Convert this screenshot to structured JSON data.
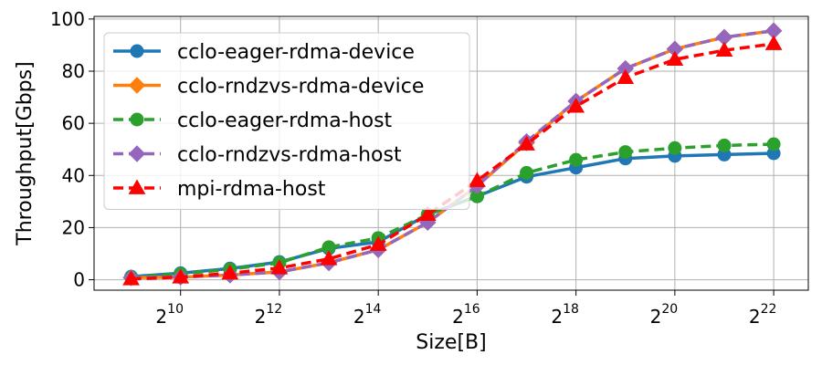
{
  "chart_data": {
    "type": "line",
    "title": "",
    "xlabel": "Size[B]",
    "ylabel": "Throughput[Gbps]",
    "x_scale": "log2",
    "x_exponents": [
      9,
      10,
      11,
      12,
      13,
      14,
      15,
      16,
      17,
      18,
      19,
      20,
      21,
      22
    ],
    "xticks": [
      {
        "base": "2",
        "exp": "10",
        "value": 10
      },
      {
        "base": "2",
        "exp": "12",
        "value": 12
      },
      {
        "base": "2",
        "exp": "14",
        "value": 14
      },
      {
        "base": "2",
        "exp": "16",
        "value": 16
      },
      {
        "base": "2",
        "exp": "18",
        "value": 18
      },
      {
        "base": "2",
        "exp": "20",
        "value": 20
      },
      {
        "base": "2",
        "exp": "22",
        "value": 22
      }
    ],
    "yticks": [
      "0",
      "20",
      "40",
      "60",
      "80",
      "100"
    ],
    "ylim": [
      -4,
      101
    ],
    "grid": true,
    "legend_position": "upper-left",
    "series": [
      {
        "name": "cclo-eager-rdma-device",
        "color": "#1f77b4",
        "dash": "solid",
        "marker": "circle",
        "values": [
          1.2,
          2.5,
          4.3,
          6.8,
          12.0,
          14.5,
          25.0,
          32.0,
          39.5,
          43.0,
          46.5,
          47.5,
          48.0,
          48.5
        ]
      },
      {
        "name": "cclo-rndzvs-rdma-device",
        "color": "#ff7f0e",
        "dash": "solid",
        "marker": "diamond",
        "values": [
          0.8,
          1.0,
          1.8,
          3.0,
          6.5,
          11.5,
          22.0,
          36.0,
          52.5,
          68.5,
          81.0,
          88.5,
          93.0,
          95.5
        ]
      },
      {
        "name": "cclo-eager-rdma-host",
        "color": "#2ca02c",
        "dash": "dashed",
        "marker": "circle",
        "values": [
          1.0,
          2.2,
          4.0,
          6.5,
          12.5,
          16.0,
          25.0,
          32.0,
          41.0,
          46.0,
          49.0,
          50.5,
          51.5,
          52.0
        ]
      },
      {
        "name": "cclo-rndzvs-rdma-host",
        "color": "#9467bd",
        "dash": "dashed",
        "marker": "diamond",
        "values": [
          0.8,
          1.0,
          1.8,
          3.0,
          6.5,
          11.5,
          22.0,
          36.0,
          53.0,
          68.5,
          81.0,
          88.5,
          93.0,
          95.5
        ]
      },
      {
        "name": "mpi-rdma-host",
        "color": "#ff0000",
        "dash": "dashed",
        "marker": "triangle",
        "values": [
          0.3,
          1.0,
          2.5,
          4.5,
          8.0,
          13.5,
          25.0,
          38.0,
          52.0,
          66.5,
          77.5,
          84.5,
          88.0,
          90.5
        ]
      }
    ]
  }
}
